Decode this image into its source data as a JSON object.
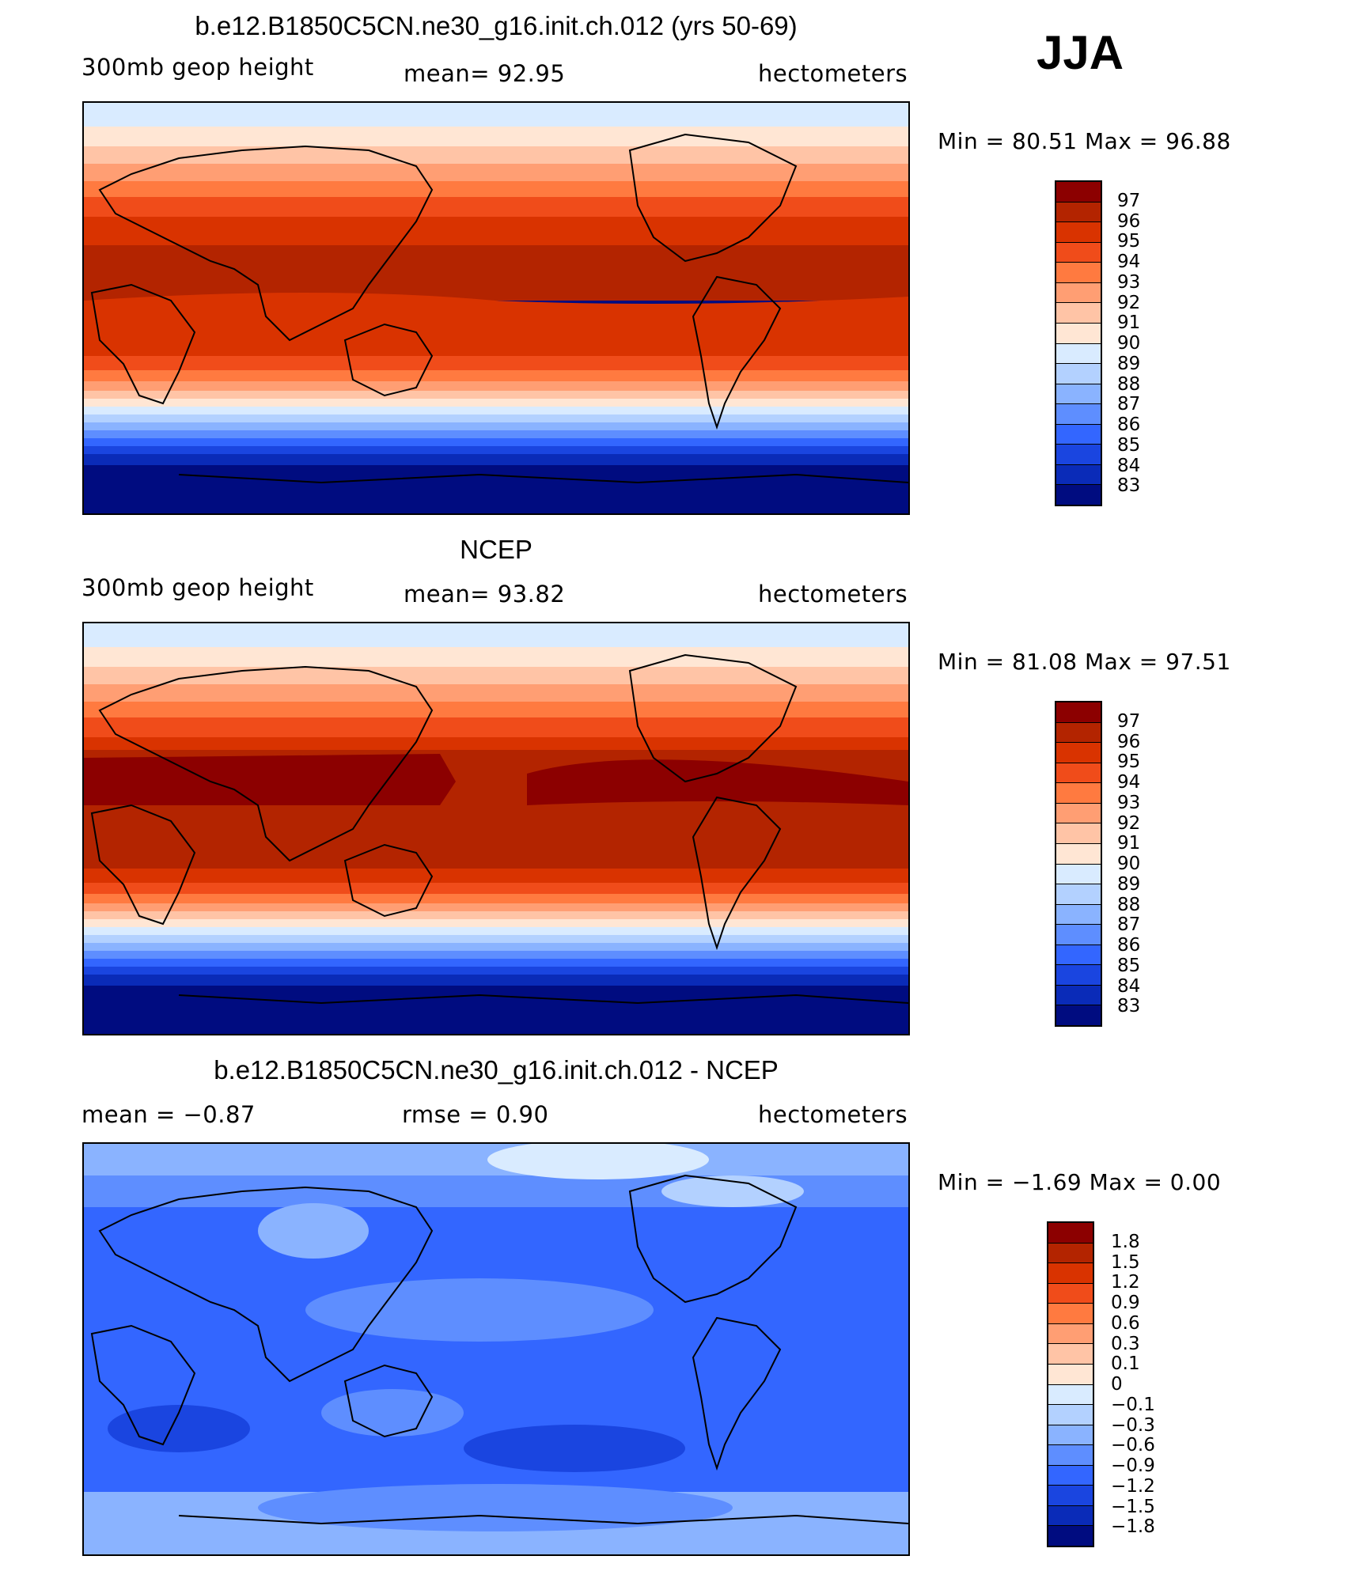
{
  "season": "JJA",
  "panels": [
    {
      "title": "b.e12.B1850C5CN.ne30_g16.init.ch.012 (yrs 50-69)",
      "left_label": "300mb  geop  height",
      "center_label": "mean=   92.95",
      "right_label": "hectometers",
      "minmax": "Min  =    80.51  Max  =    96.88",
      "map_name": "Model 300mb geopotential height map"
    },
    {
      "title": "NCEP",
      "left_label": "300mb  geop  height",
      "center_label": "mean=   93.82",
      "right_label": "hectometers",
      "minmax": "Min  =    81.08  Max  =    97.51",
      "map_name": "NCEP 300mb geopotential height map"
    },
    {
      "title": "b.e12.B1850C5CN.ne30_g16.init.ch.012 - NCEP",
      "left_label": "mean  =    −0.87",
      "center_label": "rmse  =     0.90",
      "right_label": "hectometers",
      "minmax": "Min  =    −1.69  Max  =      0.00",
      "map_name": "Difference map (model minus NCEP)"
    }
  ],
  "colorbar_abs": {
    "labels": [
      "97",
      "96",
      "95",
      "94",
      "93",
      "92",
      "91",
      "90",
      "89",
      "88",
      "87",
      "86",
      "85",
      "84",
      "83"
    ],
    "colors": [
      "#8c0000",
      "#b32400",
      "#d93300",
      "#f04c1a",
      "#ff7a40",
      "#ff9e73",
      "#ffc4a6",
      "#ffe6d4",
      "#d9ebff",
      "#b3d1ff",
      "#8ab3ff",
      "#5e8eff",
      "#3366ff",
      "#1a45e0",
      "#0a2bb8",
      "#000c80"
    ]
  },
  "colorbar_diff": {
    "labels": [
      "1.8",
      "1.5",
      "1.2",
      "0.9",
      "0.6",
      "0.3",
      "0.1",
      "0",
      "−0.1",
      "−0.3",
      "−0.6",
      "−0.9",
      "−1.2",
      "−1.5",
      "−1.8"
    ],
    "colors": [
      "#8c0000",
      "#b32400",
      "#d93300",
      "#f04c1a",
      "#ff7a40",
      "#ff9e73",
      "#ffc4a6",
      "#ffe6d4",
      "#d9ebff",
      "#b3d1ff",
      "#8ab3ff",
      "#5e8eff",
      "#3366ff",
      "#1a45e0",
      "#0a2bb8",
      "#000c80"
    ]
  }
}
